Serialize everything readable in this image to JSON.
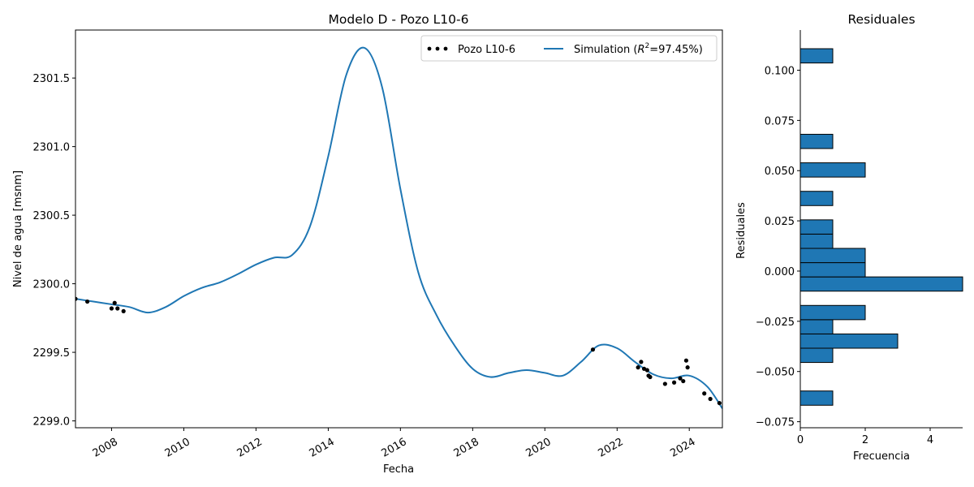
{
  "chart_data": [
    {
      "type": "line",
      "title": "Modelo D - Pozo L10-6",
      "xlabel": "Fecha",
      "ylabel": "Nivel de agua [msnm]",
      "x_ticks": [
        "2008",
        "2010",
        "2012",
        "2014",
        "2016",
        "2018",
        "2020",
        "2022",
        "2024"
      ],
      "y_ticks": [
        "2299.0",
        "2299.5",
        "2300.0",
        "2300.5",
        "2301.0",
        "2301.5"
      ],
      "xlim": [
        "2007-01-01",
        "2024-12-01"
      ],
      "ylim": [
        2298.95,
        2301.85
      ],
      "legend": {
        "position": "top-right",
        "entries": [
          {
            "label": "Pozo L10-6",
            "marker": "dot",
            "color": "#000000"
          },
          {
            "label_prefix": "Simulation (",
            "label_math": "R",
            "label_sup": "2",
            "label_suffix": "=97.45%)",
            "marker": "line",
            "color": "#1f77b4"
          }
        ]
      },
      "series": [
        {
          "name": "Simulation (R²=97.45%)",
          "color": "#1f77b4",
          "points": [
            [
              "2007-01-01",
              2299.89
            ],
            [
              "2007-07-01",
              2299.87
            ],
            [
              "2008-01-01",
              2299.85
            ],
            [
              "2008-07-01",
              2299.83
            ],
            [
              "2009-01-01",
              2299.79
            ],
            [
              "2009-07-01",
              2299.83
            ],
            [
              "2010-01-01",
              2299.91
            ],
            [
              "2010-07-01",
              2299.97
            ],
            [
              "2011-01-01",
              2300.01
            ],
            [
              "2011-07-01",
              2300.07
            ],
            [
              "2012-01-01",
              2300.14
            ],
            [
              "2012-07-01",
              2300.19
            ],
            [
              "2013-01-01",
              2300.21
            ],
            [
              "2013-07-01",
              2300.42
            ],
            [
              "2014-01-01",
              2300.93
            ],
            [
              "2014-07-01",
              2301.52
            ],
            [
              "2015-01-01",
              2301.72
            ],
            [
              "2015-07-01",
              2301.43
            ],
            [
              "2016-01-01",
              2300.69
            ],
            [
              "2016-07-01",
              2300.08
            ],
            [
              "2017-01-01",
              2299.77
            ],
            [
              "2017-07-01",
              2299.55
            ],
            [
              "2018-01-01",
              2299.38
            ],
            [
              "2018-07-01",
              2299.32
            ],
            [
              "2019-01-01",
              2299.35
            ],
            [
              "2019-07-01",
              2299.37
            ],
            [
              "2020-01-01",
              2299.35
            ],
            [
              "2020-07-01",
              2299.33
            ],
            [
              "2021-01-01",
              2299.43
            ],
            [
              "2021-07-01",
              2299.55
            ],
            [
              "2022-01-01",
              2299.53
            ],
            [
              "2022-07-01",
              2299.43
            ],
            [
              "2023-01-01",
              2299.34
            ],
            [
              "2023-07-01",
              2299.31
            ],
            [
              "2024-01-01",
              2299.33
            ],
            [
              "2024-07-01",
              2299.25
            ],
            [
              "2024-12-01",
              2299.09
            ]
          ]
        },
        {
          "name": "Pozo L10-6",
          "color": "#000000",
          "points": [
            [
              "2007-01-01",
              2299.89
            ],
            [
              "2007-05-01",
              2299.87
            ],
            [
              "2008-01-01",
              2299.82
            ],
            [
              "2008-02-01",
              2299.86
            ],
            [
              "2008-03-01",
              2299.82
            ],
            [
              "2008-05-01",
              2299.8
            ],
            [
              "2021-05-01",
              2299.52
            ],
            [
              "2022-08-01",
              2299.39
            ],
            [
              "2022-09-01",
              2299.43
            ],
            [
              "2022-10-01",
              2299.38
            ],
            [
              "2022-11-01",
              2299.37
            ],
            [
              "2022-11-15",
              2299.33
            ],
            [
              "2022-12-01",
              2299.32
            ],
            [
              "2023-05-01",
              2299.27
            ],
            [
              "2023-08-01",
              2299.28
            ],
            [
              "2023-10-01",
              2299.31
            ],
            [
              "2023-11-01",
              2299.29
            ],
            [
              "2023-12-01",
              2299.44
            ],
            [
              "2023-12-15",
              2299.39
            ],
            [
              "2024-06-01",
              2299.2
            ],
            [
              "2024-08-01",
              2299.16
            ],
            [
              "2024-11-01",
              2299.13
            ]
          ]
        }
      ]
    },
    {
      "type": "bar",
      "orientation": "horizontal",
      "title": "Residuales",
      "xlabel": "Frecuencia",
      "ylabel": "Residuales",
      "x_ticks": [
        "0",
        "2",
        "4"
      ],
      "y_ticks": [
        "0.100",
        "0.075",
        "0.050",
        "0.025",
        "0.000",
        "−0.025",
        "−0.050",
        "−0.075"
      ],
      "xlim": [
        0,
        5
      ],
      "ylim": [
        -0.078,
        0.12
      ],
      "bin_width": 0.0071,
      "color": "#1f77b4",
      "bins": [
        {
          "start": -0.0668,
          "count": 1
        },
        {
          "start": -0.0455,
          "count": 1
        },
        {
          "start": -0.0384,
          "count": 3
        },
        {
          "start": -0.0313,
          "count": 1
        },
        {
          "start": -0.0242,
          "count": 2
        },
        {
          "start": -0.01,
          "count": 5
        },
        {
          "start": -0.0029,
          "count": 2
        },
        {
          "start": 0.0042,
          "count": 2
        },
        {
          "start": 0.0113,
          "count": 1
        },
        {
          "start": 0.0184,
          "count": 1
        },
        {
          "start": 0.0326,
          "count": 1
        },
        {
          "start": 0.0468,
          "count": 2
        },
        {
          "start": 0.061,
          "count": 1
        },
        {
          "start": 0.1036,
          "count": 1
        }
      ]
    }
  ]
}
